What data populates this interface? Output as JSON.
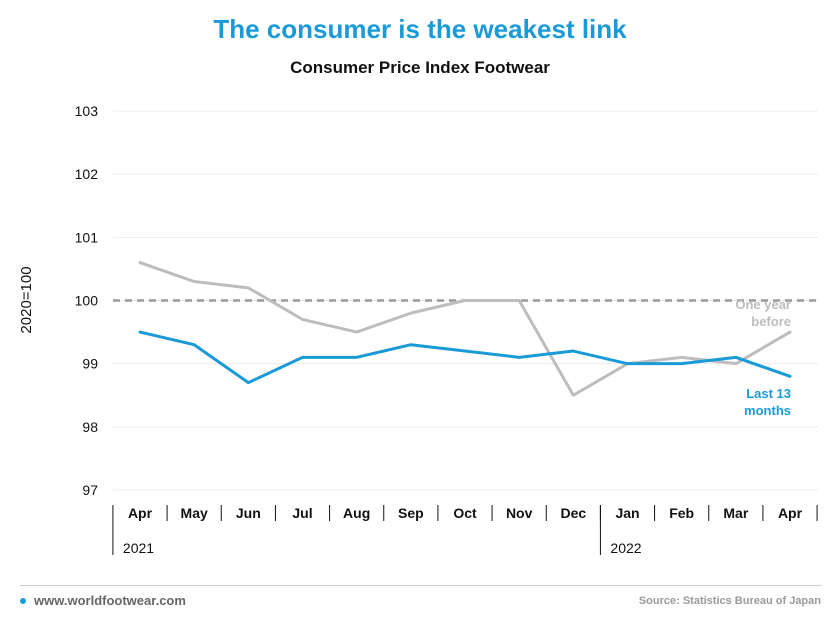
{
  "header": {
    "title": "The consumer is the weakest link",
    "subtitle": "Consumer Price Index Footwear"
  },
  "footer": {
    "website": "www.worldfootwear.com",
    "source": "Source: Statistics Bureau of Japan"
  },
  "colors": {
    "accent": "#1a9bd7",
    "prior_year": "#bdbdbd",
    "reference": "#999999"
  },
  "chart_data": {
    "type": "line",
    "title": "Consumer Price Index Footwear",
    "ylabel": "2020=100",
    "xlabel": "",
    "ylim": [
      97,
      103
    ],
    "yticks": [
      97,
      98,
      99,
      100,
      101,
      102,
      103
    ],
    "categories": [
      "Apr",
      "May",
      "Jun",
      "Jul",
      "Aug",
      "Sep",
      "Oct",
      "Nov",
      "Dec",
      "Jan",
      "Feb",
      "Mar",
      "Apr"
    ],
    "year_labels": [
      {
        "label": "2021",
        "start_index": 0
      },
      {
        "label": "2022",
        "start_index": 9
      }
    ],
    "reference_line": 100,
    "grid": true,
    "series": [
      {
        "name": "Last 13 months",
        "color": "#1a9bd7",
        "values": [
          99.5,
          99.3,
          98.7,
          99.1,
          99.1,
          99.3,
          99.2,
          99.1,
          99.2,
          99.0,
          99.0,
          99.1,
          98.8
        ]
      },
      {
        "name": "One year before",
        "color": "#bdbdbd",
        "values": [
          100.6,
          100.3,
          100.2,
          99.7,
          99.5,
          99.8,
          100.0,
          100.0,
          98.5,
          99.0,
          99.1,
          99.0,
          99.5
        ]
      }
    ]
  }
}
